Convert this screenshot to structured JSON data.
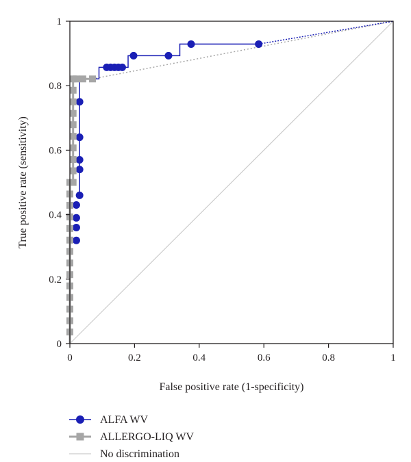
{
  "chart_data": {
    "type": "line",
    "xlabel": "False positive rate (1-specificity)",
    "ylabel": "True positive rate (sensitivity)",
    "xlim": [
      0,
      1
    ],
    "ylim": [
      0,
      1
    ],
    "x_ticks": [
      "0",
      "0.2",
      "0.4",
      "0.6",
      "0.8",
      "1"
    ],
    "y_ticks": [
      "0",
      "0.2",
      "0.4",
      "0.6",
      "0.8",
      "1"
    ],
    "x_tick_values": [
      0,
      0.2,
      0.4,
      0.6,
      0.8,
      1
    ],
    "y_tick_values": [
      0,
      0.2,
      0.4,
      0.6,
      0.8,
      1
    ],
    "grid": false,
    "legend_position": "bottom-left",
    "series": [
      {
        "name": "ALFA WV",
        "color": "#1a1fb5",
        "marker": "circle",
        "line": "step",
        "points": [
          [
            0.02,
            0.32
          ],
          [
            0.02,
            0.36
          ],
          [
            0.02,
            0.39
          ],
          [
            0.02,
            0.43
          ],
          [
            0.03,
            0.46
          ],
          [
            0.03,
            0.54
          ],
          [
            0.03,
            0.57
          ],
          [
            0.03,
            0.64
          ],
          [
            0.03,
            0.75
          ],
          [
            0.114,
            0.857
          ],
          [
            0.126,
            0.857
          ],
          [
            0.138,
            0.857
          ],
          [
            0.15,
            0.857
          ],
          [
            0.162,
            0.857
          ],
          [
            0.197,
            0.893
          ],
          [
            0.305,
            0.893
          ],
          [
            0.375,
            0.929
          ],
          [
            0.584,
            0.929
          ]
        ],
        "step_path": [
          [
            0.03,
            0.46
          ],
          [
            0.03,
            0.821
          ],
          [
            0.09,
            0.821
          ],
          [
            0.09,
            0.857
          ],
          [
            0.18,
            0.857
          ],
          [
            0.18,
            0.893
          ],
          [
            0.34,
            0.893
          ],
          [
            0.34,
            0.929
          ],
          [
            0.584,
            0.929
          ]
        ],
        "extrapolation": [
          [
            0.584,
            0.929
          ],
          [
            1,
            1
          ]
        ]
      },
      {
        "name": "ALLERGO-LIQ WV",
        "color": "#a6a6a6",
        "marker": "square",
        "line": "step",
        "points": [
          [
            0,
            0.036
          ],
          [
            0,
            0.071
          ],
          [
            0,
            0.107
          ],
          [
            0,
            0.143
          ],
          [
            0,
            0.179
          ],
          [
            0,
            0.214
          ],
          [
            0,
            0.25
          ],
          [
            0,
            0.286
          ],
          [
            0,
            0.321
          ],
          [
            0,
            0.357
          ],
          [
            0,
            0.393
          ],
          [
            0,
            0.429
          ],
          [
            0,
            0.464
          ],
          [
            0,
            0.5
          ],
          [
            0.01,
            0.5
          ],
          [
            0.01,
            0.536
          ],
          [
            0.01,
            0.571
          ],
          [
            0.01,
            0.607
          ],
          [
            0.01,
            0.643
          ],
          [
            0.01,
            0.679
          ],
          [
            0.01,
            0.714
          ],
          [
            0.01,
            0.75
          ],
          [
            0.01,
            0.786
          ],
          [
            0.01,
            0.821
          ],
          [
            0.02,
            0.821
          ],
          [
            0.04,
            0.821
          ],
          [
            0.07,
            0.821
          ]
        ],
        "step_path": [
          [
            0,
            0
          ],
          [
            0,
            0.5
          ],
          [
            0.01,
            0.5
          ],
          [
            0.01,
            0.821
          ],
          [
            0.07,
            0.821
          ]
        ],
        "extrapolation": [
          [
            0.07,
            0.821
          ],
          [
            1,
            1
          ]
        ]
      },
      {
        "name": "No discrimination",
        "color": "#cccccc",
        "marker": "none",
        "line": "straight",
        "points": [
          [
            0,
            0
          ],
          [
            1,
            1
          ]
        ]
      }
    ]
  }
}
